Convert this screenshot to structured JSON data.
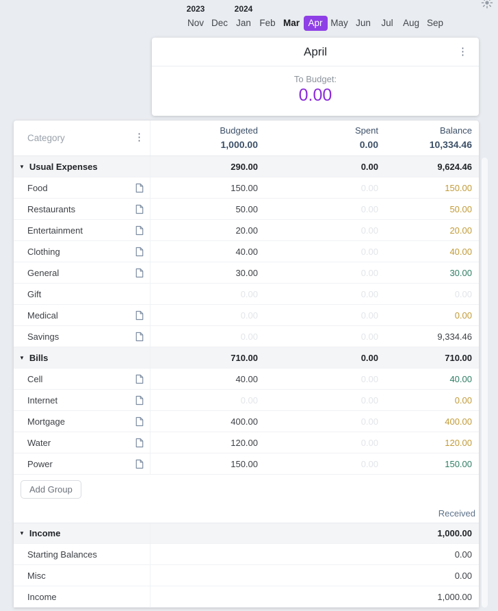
{
  "colors": {
    "accent_purple": "#8e3fe5",
    "to_budget_purple": "#8a2bd9",
    "warning_gold": "#c29b37",
    "positive_green": "#2e7d64",
    "header_slate": "#3d5068",
    "page_background": "#e9ecf0"
  },
  "icons": {
    "theme": "sun-icon",
    "menu": "kebab-menu-icon",
    "note": "note-icon",
    "collapse": "triangle-down-icon"
  },
  "header": {
    "years": [
      {
        "label": "2023",
        "month_index": 0
      },
      {
        "label": "2024",
        "month_index": 2
      }
    ],
    "months": [
      {
        "label": "Nov"
      },
      {
        "label": "Dec"
      },
      {
        "label": "Jan"
      },
      {
        "label": "Feb"
      },
      {
        "label": "Mar"
      },
      {
        "label": "Apr"
      },
      {
        "label": "May"
      },
      {
        "label": "Jun"
      },
      {
        "label": "Jul"
      },
      {
        "label": "Aug"
      },
      {
        "label": "Sep"
      }
    ],
    "bold_index": 4,
    "selected_index": 5
  },
  "month_card": {
    "title": "April",
    "to_budget_label": "To Budget:",
    "to_budget_value": "0.00"
  },
  "table": {
    "category_header": "Category",
    "columns": [
      {
        "label": "Budgeted",
        "total": "1,000.00"
      },
      {
        "label": "Spent",
        "total": "0.00"
      },
      {
        "label": "Balance",
        "total": "10,334.46"
      }
    ],
    "groups": [
      {
        "name": "Usual Expenses",
        "budgeted": "290.00",
        "spent": "0.00",
        "balance": "9,624.46",
        "rows": [
          {
            "name": "Food",
            "note_icon": true,
            "budgeted": {
              "text": "150.00",
              "style": "dark"
            },
            "spent": {
              "text": "0.00",
              "style": "faint"
            },
            "balance": {
              "text": "150.00",
              "style": "gold"
            }
          },
          {
            "name": "Restaurants",
            "note_icon": true,
            "budgeted": {
              "text": "50.00",
              "style": "dark"
            },
            "spent": {
              "text": "0.00",
              "style": "faint"
            },
            "balance": {
              "text": "50.00",
              "style": "gold"
            }
          },
          {
            "name": "Entertainment",
            "note_icon": true,
            "budgeted": {
              "text": "20.00",
              "style": "dark"
            },
            "spent": {
              "text": "0.00",
              "style": "faint"
            },
            "balance": {
              "text": "20.00",
              "style": "gold"
            }
          },
          {
            "name": "Clothing",
            "note_icon": true,
            "budgeted": {
              "text": "40.00",
              "style": "dark"
            },
            "spent": {
              "text": "0.00",
              "style": "faint"
            },
            "balance": {
              "text": "40.00",
              "style": "gold"
            }
          },
          {
            "name": "General",
            "note_icon": true,
            "budgeted": {
              "text": "30.00",
              "style": "dark"
            },
            "spent": {
              "text": "0.00",
              "style": "faint"
            },
            "balance": {
              "text": "30.00",
              "style": "green"
            }
          },
          {
            "name": "Gift",
            "note_icon": false,
            "budgeted": {
              "text": "0.00",
              "style": "faint"
            },
            "spent": {
              "text": "0.00",
              "style": "faint"
            },
            "balance": {
              "text": "0.00",
              "style": "faint"
            }
          },
          {
            "name": "Medical",
            "note_icon": true,
            "budgeted": {
              "text": "0.00",
              "style": "faint"
            },
            "spent": {
              "text": "0.00",
              "style": "faint"
            },
            "balance": {
              "text": "0.00",
              "style": "gold"
            }
          },
          {
            "name": "Savings",
            "note_icon": true,
            "budgeted": {
              "text": "0.00",
              "style": "faint"
            },
            "spent": {
              "text": "0.00",
              "style": "faint"
            },
            "balance": {
              "text": "9,334.46",
              "style": "dark"
            }
          }
        ]
      },
      {
        "name": "Bills",
        "budgeted": "710.00",
        "spent": "0.00",
        "balance": "710.00",
        "rows": [
          {
            "name": "Cell",
            "note_icon": true,
            "budgeted": {
              "text": "40.00",
              "style": "dark"
            },
            "spent": {
              "text": "0.00",
              "style": "faint"
            },
            "balance": {
              "text": "40.00",
              "style": "green"
            }
          },
          {
            "name": "Internet",
            "note_icon": true,
            "budgeted": {
              "text": "0.00",
              "style": "faint"
            },
            "spent": {
              "text": "0.00",
              "style": "faint"
            },
            "balance": {
              "text": "0.00",
              "style": "gold"
            }
          },
          {
            "name": "Mortgage",
            "note_icon": true,
            "budgeted": {
              "text": "400.00",
              "style": "dark"
            },
            "spent": {
              "text": "0.00",
              "style": "faint"
            },
            "balance": {
              "text": "400.00",
              "style": "gold"
            }
          },
          {
            "name": "Water",
            "note_icon": true,
            "budgeted": {
              "text": "120.00",
              "style": "dark"
            },
            "spent": {
              "text": "0.00",
              "style": "faint"
            },
            "balance": {
              "text": "120.00",
              "style": "gold"
            }
          },
          {
            "name": "Power",
            "note_icon": true,
            "budgeted": {
              "text": "150.00",
              "style": "dark"
            },
            "spent": {
              "text": "0.00",
              "style": "faint"
            },
            "balance": {
              "text": "150.00",
              "style": "green"
            }
          }
        ]
      }
    ],
    "add_group_label": "Add Group",
    "received_label": "Received",
    "income_group": {
      "name": "Income",
      "received": "1,000.00",
      "rows": [
        {
          "name": "Starting Balances",
          "received": "0.00"
        },
        {
          "name": "Misc",
          "received": "0.00"
        },
        {
          "name": "Income",
          "received": "1,000.00"
        }
      ]
    }
  }
}
